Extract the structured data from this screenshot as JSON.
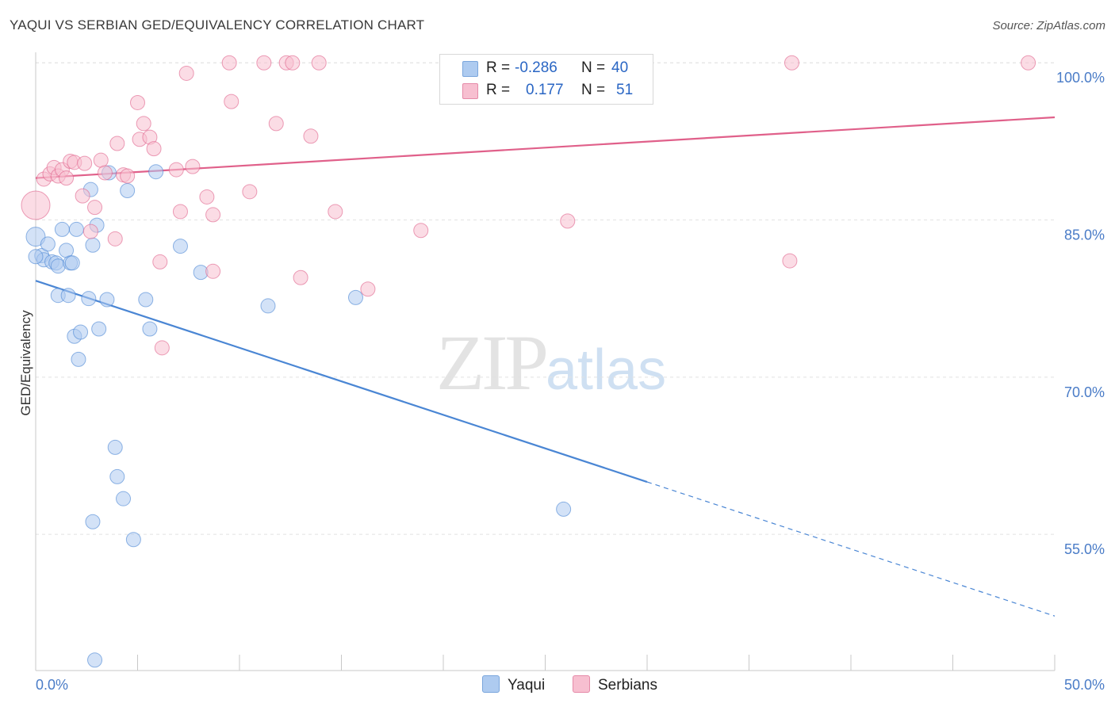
{
  "title": "YAQUI VS SERBIAN GED/EQUIVALENCY CORRELATION CHART",
  "source": "Source: ZipAtlas.com",
  "watermark": {
    "zip": "ZIP",
    "atlas": "atlas"
  },
  "legend": {
    "rows": [
      {
        "r_label": "R =",
        "r_value": "-0.286",
        "n_label": "N =",
        "n_value": "40",
        "color": "#aecbf0"
      },
      {
        "r_label": "R =",
        "r_value": "0.177",
        "n_label": "N =",
        "n_value": "51",
        "color": "#f7bfd0"
      }
    ]
  },
  "bottom_legend": {
    "yaqui": "Yaqui",
    "serbians": "Serbians"
  },
  "chart_data": {
    "type": "scatter",
    "title": "YAQUI VS SERBIAN GED/EQUIVALENCY CORRELATION CHART",
    "xlabel": "",
    "ylabel": "GED/Equivalency",
    "xlim": [
      0,
      50
    ],
    "ylim": [
      42,
      101
    ],
    "x_tick_labels": [
      "0.0%",
      "50.0%"
    ],
    "y_ticks": [
      55,
      70,
      85,
      100
    ],
    "y_tick_labels": [
      "55.0%",
      "70.0%",
      "85.0%",
      "100.0%"
    ],
    "grid": true,
    "series": [
      {
        "name": "Yaqui",
        "color": "#4a86d4",
        "fill": "#aecbf0",
        "r": -0.286,
        "n": 40,
        "trend": {
          "x0": 0,
          "y0": 79.2,
          "x1": 30,
          "y1": 60.0,
          "dash_to_x": 50,
          "dash_to_y": 47.2
        },
        "points": [
          [
            0.0,
            83.4
          ],
          [
            0.3,
            81.6
          ],
          [
            0.4,
            81.2
          ],
          [
            0.6,
            82.7
          ],
          [
            0.8,
            81.0
          ],
          [
            1.0,
            80.9
          ],
          [
            1.1,
            77.8
          ],
          [
            1.1,
            80.6
          ],
          [
            1.3,
            84.1
          ],
          [
            1.5,
            82.1
          ],
          [
            1.6,
            77.8
          ],
          [
            1.7,
            80.9
          ],
          [
            1.8,
            80.9
          ],
          [
            1.9,
            73.9
          ],
          [
            2.0,
            84.1
          ],
          [
            2.2,
            74.3
          ],
          [
            2.1,
            71.7
          ],
          [
            2.6,
            77.5
          ],
          [
            2.7,
            87.9
          ],
          [
            2.8,
            82.6
          ],
          [
            3.0,
            84.5
          ],
          [
            3.1,
            74.6
          ],
          [
            3.5,
            77.4
          ],
          [
            3.6,
            89.5
          ],
          [
            3.9,
            63.3
          ],
          [
            4.0,
            60.5
          ],
          [
            4.3,
            58.4
          ],
          [
            4.5,
            87.8
          ],
          [
            4.8,
            54.5
          ],
          [
            5.4,
            77.4
          ],
          [
            5.6,
            74.6
          ],
          [
            5.9,
            89.6
          ],
          [
            7.1,
            82.5
          ],
          [
            8.1,
            80.0
          ],
          [
            11.4,
            76.8
          ],
          [
            15.7,
            77.6
          ],
          [
            2.8,
            56.2
          ],
          [
            2.9,
            43.0
          ],
          [
            25.9,
            57.4
          ],
          [
            0.0,
            81.5
          ]
        ]
      },
      {
        "name": "Serbians",
        "color": "#e0608a",
        "fill": "#f7bfd0",
        "r": 0.177,
        "n": 51,
        "trend": {
          "x0": 0,
          "y0": 89.0,
          "x1": 50,
          "y1": 94.8
        },
        "points": [
          [
            0.0,
            86.4
          ],
          [
            0.4,
            88.9
          ],
          [
            0.7,
            89.4
          ],
          [
            0.9,
            90.0
          ],
          [
            1.1,
            89.2
          ],
          [
            1.3,
            89.8
          ],
          [
            1.5,
            89.0
          ],
          [
            1.7,
            90.6
          ],
          [
            1.9,
            90.5
          ],
          [
            2.3,
            87.3
          ],
          [
            2.4,
            90.4
          ],
          [
            2.7,
            83.9
          ],
          [
            2.9,
            86.2
          ],
          [
            3.2,
            90.7
          ],
          [
            3.4,
            89.5
          ],
          [
            3.9,
            83.2
          ],
          [
            4.0,
            92.3
          ],
          [
            4.3,
            89.3
          ],
          [
            4.5,
            89.2
          ],
          [
            5.0,
            96.2
          ],
          [
            5.1,
            92.7
          ],
          [
            5.3,
            94.2
          ],
          [
            5.6,
            92.9
          ],
          [
            5.8,
            91.8
          ],
          [
            6.1,
            81.0
          ],
          [
            6.2,
            72.8
          ],
          [
            6.9,
            89.8
          ],
          [
            7.1,
            85.8
          ],
          [
            7.4,
            99.0
          ],
          [
            7.7,
            90.1
          ],
          [
            8.4,
            87.2
          ],
          [
            8.7,
            80.1
          ],
          [
            8.7,
            85.5
          ],
          [
            9.5,
            100.0
          ],
          [
            9.6,
            96.3
          ],
          [
            10.5,
            87.7
          ],
          [
            11.2,
            100.0
          ],
          [
            11.8,
            94.2
          ],
          [
            12.3,
            100.0
          ],
          [
            12.6,
            100.0
          ],
          [
            13.0,
            79.5
          ],
          [
            13.5,
            93.0
          ],
          [
            13.9,
            100.0
          ],
          [
            14.7,
            85.8
          ],
          [
            16.3,
            78.4
          ],
          [
            18.9,
            84.0
          ],
          [
            20.7,
            100.0
          ],
          [
            26.1,
            84.9
          ],
          [
            37.0,
            81.1
          ],
          [
            37.1,
            100.0
          ],
          [
            48.7,
            100.0
          ]
        ]
      }
    ]
  }
}
